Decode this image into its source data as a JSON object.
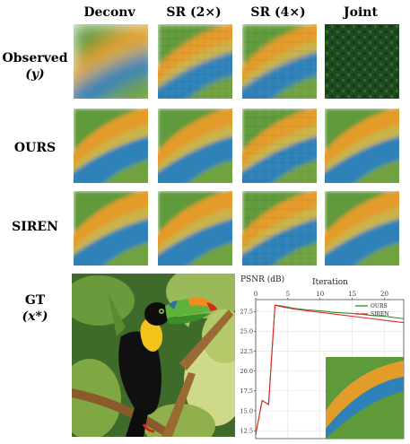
{
  "columns": [
    "Deconv",
    "SR (2×)",
    "SR (4×)",
    "Joint"
  ],
  "rows": {
    "observed": {
      "label": "Observed",
      "sub": "(y)"
    },
    "ours": {
      "label": "OURS"
    },
    "siren": {
      "label": "SIREN"
    },
    "gt": {
      "label": "GT",
      "sub": "(x*)"
    }
  },
  "colors": {
    "ours_line": "#2e8b2e",
    "siren_line": "#e8262a",
    "tile_green": "#5f9a3a",
    "tile_orange": "#e39b2a",
    "tile_blue": "#2f82b8"
  },
  "chart_data": {
    "type": "line",
    "title": "PSNR (dB)",
    "xlabel": "Iteration",
    "x_ticks": [
      0,
      5,
      10,
      15,
      20
    ],
    "y_ticks": [
      12.5,
      15.0,
      17.5,
      20.0,
      22.5,
      25.0,
      27.5
    ],
    "xlim": [
      0,
      23
    ],
    "ylim": [
      11.5,
      29
    ],
    "x_axis_position": "top",
    "grid": true,
    "legend": "top-right",
    "x": [
      0,
      1,
      2,
      3,
      4,
      6,
      8,
      10,
      12,
      14,
      16,
      18,
      20,
      22,
      23
    ],
    "series": [
      {
        "name": "OURS",
        "values": [
          12.0,
          16.3,
          15.8,
          28.3,
          28.2,
          27.9,
          27.7,
          27.6,
          27.4,
          27.3,
          27.2,
          27.0,
          26.9,
          26.7,
          26.6
        ]
      },
      {
        "name": "SIREN",
        "values": [
          12.0,
          16.3,
          15.8,
          28.3,
          28.1,
          27.8,
          27.6,
          27.4,
          27.2,
          27.0,
          26.8,
          26.6,
          26.4,
          26.2,
          26.1
        ]
      }
    ]
  }
}
